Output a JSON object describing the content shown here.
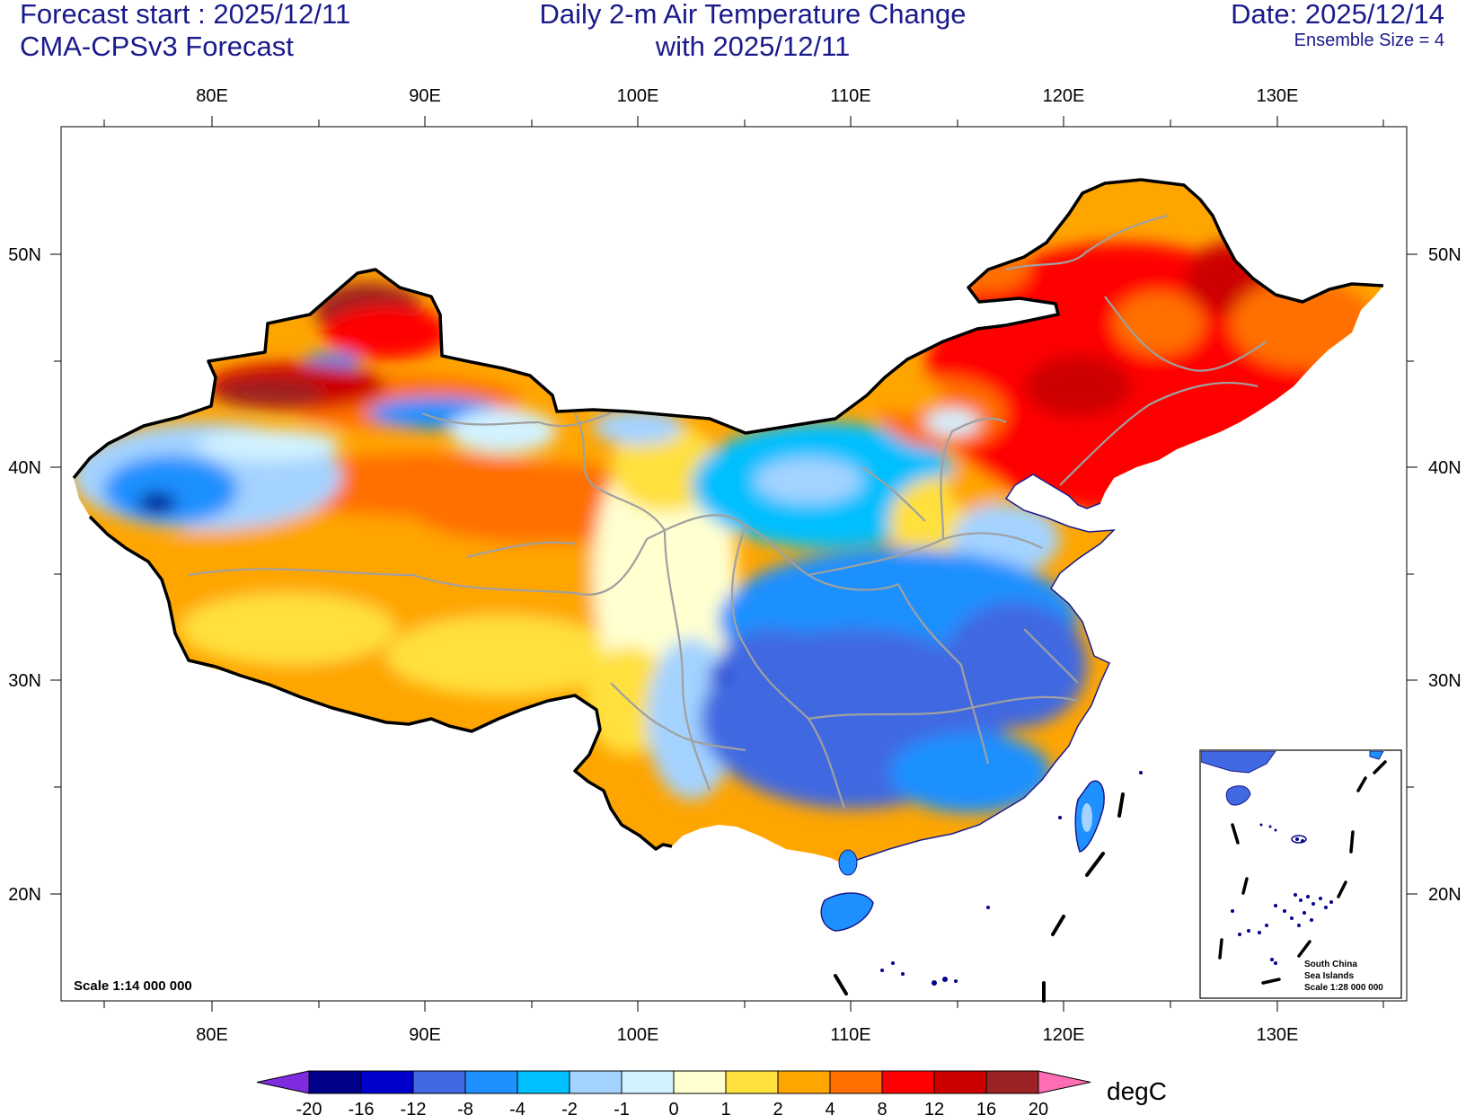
{
  "header": {
    "forecast_start": "Forecast start : 2025/12/11",
    "model": "CMA-CPSv3 Forecast",
    "title_line1": "Daily 2-m Air Temperature Change",
    "title_line2": "with 2025/12/11",
    "date": "Date: 2025/12/14",
    "ensemble": "Ensemble Size = 4"
  },
  "map": {
    "lon_labels": [
      "80E",
      "90E",
      "100E",
      "110E",
      "120E",
      "130E"
    ],
    "lat_labels": [
      "50N",
      "40N",
      "30N",
      "20N"
    ],
    "scale": "Scale 1:14 000 000",
    "inset": {
      "line1": "South China",
      "line2": "Sea Islands",
      "line3": "Scale 1:28 000 000"
    }
  },
  "colorbar": {
    "unit": "degC",
    "ticks": [
      "-20",
      "-16",
      "-12",
      "-8",
      "-4",
      "-2",
      "-1",
      "0",
      "1",
      "2",
      "4",
      "8",
      "12",
      "16",
      "20"
    ],
    "colors": [
      "#7f2be0",
      "#00008b",
      "#0000cd",
      "#4169e1",
      "#1e90ff",
      "#00bfff",
      "#a4d3ff",
      "#d2f2ff",
      "#ffffd0",
      "#ffe03c",
      "#ffa500",
      "#ff7000",
      "#ff0000",
      "#cd0000",
      "#9b2222",
      "#ff6eb4"
    ]
  }
}
